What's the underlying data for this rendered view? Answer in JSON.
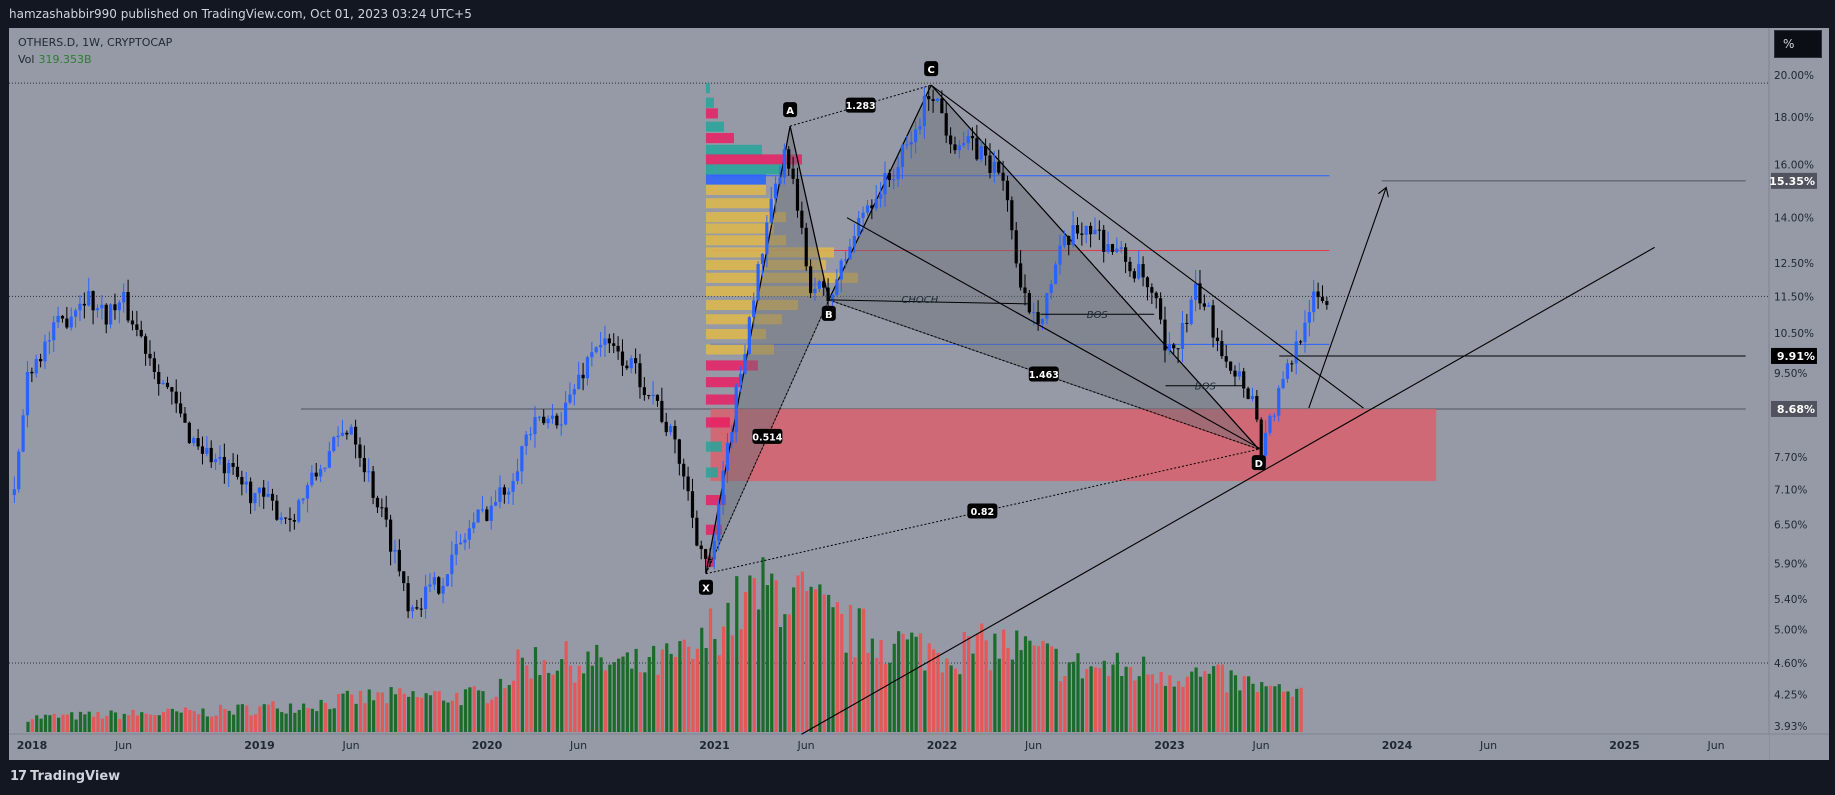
{
  "header": {
    "attribution": "hamzashabbir990 published on TradingView.com, Oct 01, 2023 03:24 UTC+5"
  },
  "legend": {
    "symbol": "OTHERS.D, 1W, CRYPTOCAP",
    "vol_label": "Vol",
    "vol_value": "319.353B"
  },
  "toolbar": {
    "percent_button": "%"
  },
  "footer": {
    "brand": "TradingView",
    "brand_mark": "17"
  },
  "colors": {
    "background": "#131722",
    "chart_bg": "#959aa6",
    "candle_up": "#2962ff",
    "candle_down": "#000000",
    "vol_up": "#1b6b2b",
    "vol_down": "#e4585a",
    "profile_teal": "#26a69a",
    "profile_yellow": "#e0b84a",
    "profile_blue": "#2962ff",
    "profile_pink": "#e91e63",
    "zone": "#d9606c"
  },
  "chart_data": {
    "type": "candlestick",
    "symbol": "OTHERS.D",
    "timeframe": "1W",
    "scale": "log",
    "y_ticks": [
      20.0,
      18.0,
      16.0,
      14.0,
      12.5,
      11.5,
      10.5,
      9.5,
      8.6,
      7.7,
      7.1,
      6.5,
      5.9,
      5.4,
      5.0,
      4.6,
      4.25,
      3.93
    ],
    "y_tick_labels": [
      "20.00%",
      "18.00%",
      "16.00%",
      "14.00%",
      "12.50%",
      "11.50%",
      "10.50%",
      "9.50%",
      "8.60%",
      "7.70%",
      "7.10%",
      "6.50%",
      "5.90%",
      "5.40%",
      "5.00%",
      "4.60%",
      "4.25%",
      "3.93%"
    ],
    "x_ticks": [
      {
        "t": 0.0,
        "label": "2018"
      },
      {
        "t": 0.42,
        "label": "Jun"
      },
      {
        "t": 1.0,
        "label": "2019"
      },
      {
        "t": 1.42,
        "label": "Jun"
      },
      {
        "t": 2.0,
        "label": "2020"
      },
      {
        "t": 2.42,
        "label": "Jun"
      },
      {
        "t": 3.0,
        "label": "2021"
      },
      {
        "t": 3.42,
        "label": "Jun"
      },
      {
        "t": 4.0,
        "label": "2022"
      },
      {
        "t": 4.42,
        "label": "Jun"
      },
      {
        "t": 5.0,
        "label": "2023"
      },
      {
        "t": 5.42,
        "label": "Jun"
      },
      {
        "t": 6.0,
        "label": "2024"
      },
      {
        "t": 6.42,
        "label": "Jun"
      },
      {
        "t": 7.0,
        "label": "2025"
      },
      {
        "t": 7.42,
        "label": "Jun"
      }
    ],
    "price_path": [
      [
        -0.06,
        7.0
      ],
      [
        0.0,
        9.6
      ],
      [
        0.1,
        10.4
      ],
      [
        0.25,
        11.6
      ],
      [
        0.33,
        11.0
      ],
      [
        0.42,
        11.3
      ],
      [
        0.55,
        9.8
      ],
      [
        0.7,
        8.2
      ],
      [
        0.85,
        7.5
      ],
      [
        1.0,
        7.0
      ],
      [
        1.15,
        6.6
      ],
      [
        1.3,
        7.6
      ],
      [
        1.42,
        8.4
      ],
      [
        1.5,
        7.3
      ],
      [
        1.6,
        6.2
      ],
      [
        1.68,
        5.3
      ],
      [
        1.8,
        5.6
      ],
      [
        1.95,
        6.5
      ],
      [
        2.1,
        7.1
      ],
      [
        2.2,
        8.2
      ],
      [
        2.35,
        8.6
      ],
      [
        2.5,
        10.3
      ],
      [
        2.63,
        9.8
      ],
      [
        2.75,
        9.0
      ],
      [
        2.87,
        7.6
      ],
      [
        2.95,
        6.2
      ],
      [
        3.0,
        5.8
      ],
      [
        3.08,
        8.0
      ],
      [
        3.18,
        11.3
      ],
      [
        3.3,
        15.6
      ],
      [
        3.34,
        16.5
      ],
      [
        3.43,
        12.0
      ],
      [
        3.52,
        11.4
      ],
      [
        3.6,
        12.8
      ],
      [
        3.68,
        14.4
      ],
      [
        3.8,
        15.6
      ],
      [
        3.9,
        17.3
      ],
      [
        3.97,
        19.5
      ],
      [
        4.05,
        17.2
      ],
      [
        4.2,
        16.4
      ],
      [
        4.3,
        15.2
      ],
      [
        4.36,
        11.5
      ],
      [
        4.45,
        11.0
      ],
      [
        4.55,
        13.0
      ],
      [
        4.65,
        13.8
      ],
      [
        4.78,
        12.9
      ],
      [
        4.9,
        12.0
      ],
      [
        4.97,
        11.0
      ],
      [
        5.0,
        9.8
      ],
      [
        5.08,
        10.6
      ],
      [
        5.14,
        11.7
      ],
      [
        5.22,
        10.5
      ],
      [
        5.3,
        9.6
      ],
      [
        5.38,
        9.0
      ],
      [
        5.42,
        7.9
      ],
      [
        5.5,
        9.0
      ],
      [
        5.56,
        9.9
      ],
      [
        5.63,
        11.3
      ],
      [
        5.7,
        11.4
      ]
    ],
    "volume_path": [
      [
        0.0,
        0.1
      ],
      [
        0.8,
        0.14
      ],
      [
        1.3,
        0.2
      ],
      [
        1.5,
        0.24
      ],
      [
        2.0,
        0.25
      ],
      [
        2.2,
        0.5
      ],
      [
        2.45,
        0.48
      ],
      [
        2.7,
        0.45
      ],
      [
        2.95,
        0.55
      ],
      [
        3.0,
        0.7
      ],
      [
        3.15,
        0.9
      ],
      [
        3.3,
        1.0
      ],
      [
        3.6,
        0.7
      ],
      [
        4.0,
        0.55
      ],
      [
        4.3,
        0.6
      ],
      [
        4.6,
        0.45
      ],
      [
        5.0,
        0.42
      ],
      [
        5.3,
        0.35
      ],
      [
        5.7,
        0.2
      ]
    ],
    "volume_profile_levels": [
      [
        19.6,
        2,
        "teal"
      ],
      [
        18.9,
        4,
        "teal"
      ],
      [
        18.4,
        6,
        "pink"
      ],
      [
        17.8,
        9,
        "teal"
      ],
      [
        17.3,
        14,
        "pink"
      ],
      [
        16.8,
        28,
        "teal"
      ],
      [
        16.4,
        48,
        "pink"
      ],
      [
        16.0,
        40,
        "teal"
      ],
      [
        15.6,
        30,
        "blue"
      ],
      [
        15.2,
        30,
        "yellow"
      ],
      [
        14.7,
        34,
        "yellow"
      ],
      [
        14.2,
        40,
        "yellow"
      ],
      [
        13.8,
        34,
        "yellow"
      ],
      [
        13.4,
        40,
        "yellow"
      ],
      [
        13.0,
        64,
        "yellow"
      ],
      [
        12.6,
        60,
        "yellow"
      ],
      [
        12.2,
        76,
        "yellow"
      ],
      [
        11.8,
        58,
        "yellow"
      ],
      [
        11.4,
        46,
        "yellow"
      ],
      [
        11.0,
        38,
        "yellow"
      ],
      [
        10.6,
        30,
        "yellow"
      ],
      [
        10.2,
        34,
        "yellow"
      ],
      [
        9.8,
        26,
        "pink"
      ],
      [
        9.4,
        18,
        "pink"
      ],
      [
        9.0,
        16,
        "pink"
      ],
      [
        8.5,
        12,
        "pink"
      ],
      [
        8.0,
        8,
        "teal"
      ],
      [
        7.5,
        6,
        "teal"
      ],
      [
        7.0,
        10,
        "pink"
      ],
      [
        6.5,
        8,
        "pink"
      ],
      [
        6.0,
        4,
        "pink"
      ]
    ],
    "harmonic_pattern": {
      "points": [
        {
          "label": "X",
          "t": 2.98,
          "y": 5.75
        },
        {
          "label": "A",
          "t": 3.35,
          "y": 17.6
        },
        {
          "label": "B",
          "t": 3.52,
          "y": 11.4
        },
        {
          "label": "C",
          "t": 3.97,
          "y": 19.5
        },
        {
          "label": "D",
          "t": 5.41,
          "y": 7.85
        }
      ],
      "ratios": [
        "1.283",
        "0.514",
        "1.463",
        "0.82"
      ]
    },
    "annotations": {
      "choch": "CHOCH",
      "bos": "BOS"
    },
    "horizontal_levels": [
      {
        "y": 19.6,
        "style": "dotted",
        "color": "#2a2e39"
      },
      {
        "y": 11.5,
        "style": "dotted",
        "color": "#2a2e39"
      },
      {
        "y": 4.6,
        "style": "dotted",
        "color": "#2a2e39"
      },
      {
        "y": 15.55,
        "style": "solid",
        "color": "#2962ff",
        "t0": 3.0,
        "t1": 5.72
      },
      {
        "y": 15.35,
        "style": "solid",
        "color": "#50535e",
        "t0": 5.95,
        "t1": 7.55
      },
      {
        "y": 12.9,
        "style": "solid",
        "color": "#e53945",
        "t0": 3.0,
        "t1": 5.72
      },
      {
        "y": 10.2,
        "style": "solid",
        "color": "#2962ff",
        "t0": 3.0,
        "t1": 5.72
      },
      {
        "y": 9.91,
        "style": "solid",
        "color": "#000000",
        "t0": 5.5,
        "t1": 7.55
      },
      {
        "y": 8.68,
        "style": "solid",
        "color": "#50535e",
        "t0": 1.2,
        "t1": 7.55
      }
    ],
    "price_labels": [
      {
        "value": 15.35,
        "text": "15.35%",
        "bg": "#50535e",
        "fg": "#ffffff"
      },
      {
        "value": 9.91,
        "text": "9.91%",
        "bg": "#000000",
        "fg": "#ffffff"
      },
      {
        "value": 8.68,
        "text": "8.68%",
        "bg": "#50535e",
        "fg": "#ffffff"
      }
    ],
    "zone": {
      "t0": 3.0,
      "t1": 6.19,
      "y_top": 8.68,
      "y_bottom": 7.25
    },
    "trendlines": [
      {
        "from": [
          3.97,
          19.5
        ],
        "to": [
          5.87,
          8.7
        ]
      },
      {
        "from": [
          3.6,
          14.0
        ],
        "to": [
          5.42,
          7.85
        ]
      },
      {
        "from": [
          3.4,
          3.85
        ],
        "to": [
          7.15,
          13.0
        ]
      },
      {
        "from": [
          5.63,
          8.7
        ],
        "to": [
          5.97,
          15.1
        ],
        "arrow": true
      }
    ],
    "bos_levels": [
      {
        "t0": 4.45,
        "t1": 4.95,
        "y": 11.0
      },
      {
        "t0": 5.0,
        "t1": 5.35,
        "y": 9.2
      }
    ]
  }
}
